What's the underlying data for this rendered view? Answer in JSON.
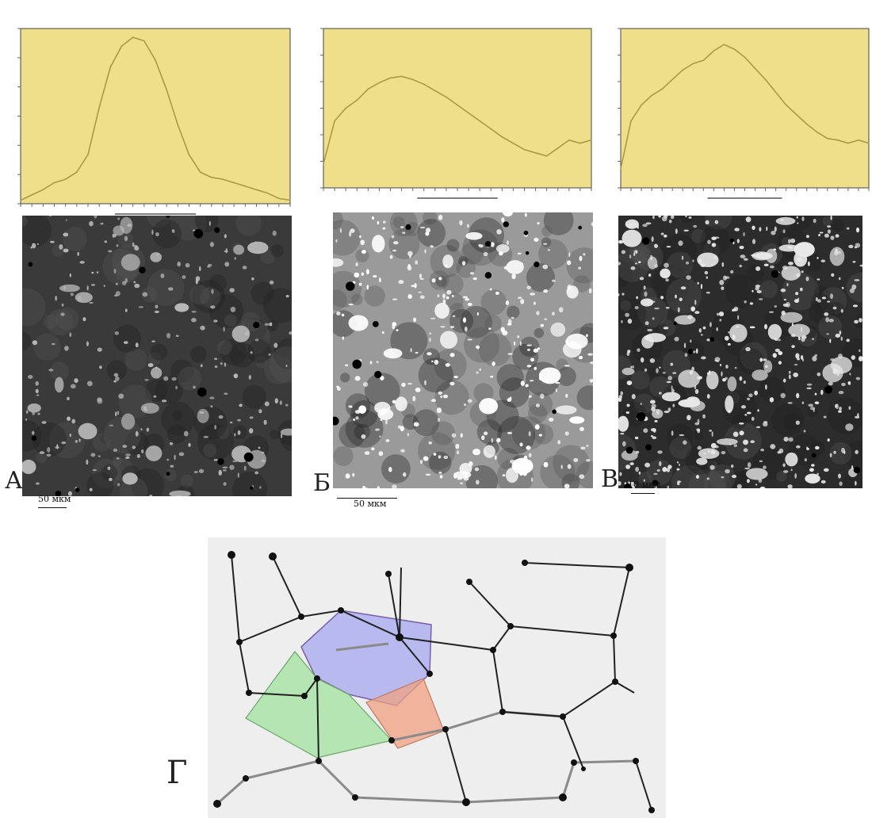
{
  "figure": {
    "panels": [
      {
        "letter": "А",
        "scale_label": "50 мкм"
      },
      {
        "letter": "Б",
        "scale_label": "50 мкм"
      },
      {
        "letter": "В",
        "scale_label": "10 мкм"
      },
      {
        "letter": "Г",
        "scale_label": ""
      }
    ],
    "colors": {
      "plot_background": "#f0df8a",
      "plot_line": "#a99a45",
      "network_edge": "#222222",
      "network_edge_secondary": "#8a8a8a",
      "region_blue": "#8c8ff0",
      "region_green": "#8fe08a",
      "region_red": "#f0a082"
    }
  },
  "chart_data": [
    {
      "type": "line",
      "panel": "А",
      "x": [
        0,
        1,
        2,
        3,
        4,
        5,
        6,
        7,
        8,
        9,
        10,
        11,
        12,
        13,
        14,
        15,
        16,
        17,
        18,
        19,
        20,
        21,
        22,
        23,
        24
      ],
      "values": [
        0.02,
        0.05,
        0.08,
        0.12,
        0.14,
        0.18,
        0.28,
        0.55,
        0.78,
        0.9,
        0.95,
        0.93,
        0.82,
        0.65,
        0.45,
        0.28,
        0.18,
        0.15,
        0.14,
        0.12,
        0.1,
        0.08,
        0.06,
        0.03,
        0.02
      ],
      "ylim": [
        0,
        1
      ],
      "grid": false
    },
    {
      "type": "line",
      "panel": "Б",
      "x": [
        0,
        1,
        2,
        3,
        4,
        5,
        6,
        7,
        8,
        9,
        10,
        11,
        12,
        13,
        14,
        15,
        16,
        17,
        18,
        19,
        20,
        21,
        22,
        23,
        24
      ],
      "values": [
        0.15,
        0.42,
        0.5,
        0.55,
        0.62,
        0.66,
        0.69,
        0.7,
        0.68,
        0.65,
        0.61,
        0.57,
        0.52,
        0.47,
        0.42,
        0.37,
        0.32,
        0.28,
        0.24,
        0.22,
        0.2,
        0.25,
        0.3,
        0.28,
        0.3
      ],
      "ylim": [
        0,
        1
      ],
      "grid": false
    },
    {
      "type": "line",
      "panel": "В",
      "x": [
        0,
        1,
        2,
        3,
        4,
        5,
        6,
        7,
        8,
        9,
        10,
        11,
        12,
        13,
        14,
        15,
        16,
        17,
        18,
        19,
        20,
        21,
        22,
        23,
        24
      ],
      "values": [
        0.12,
        0.42,
        0.52,
        0.58,
        0.62,
        0.68,
        0.74,
        0.78,
        0.8,
        0.86,
        0.9,
        0.87,
        0.82,
        0.75,
        0.68,
        0.6,
        0.52,
        0.46,
        0.4,
        0.35,
        0.31,
        0.3,
        0.28,
        0.3,
        0.28
      ],
      "ylim": [
        0,
        1
      ],
      "grid": false
    }
  ]
}
